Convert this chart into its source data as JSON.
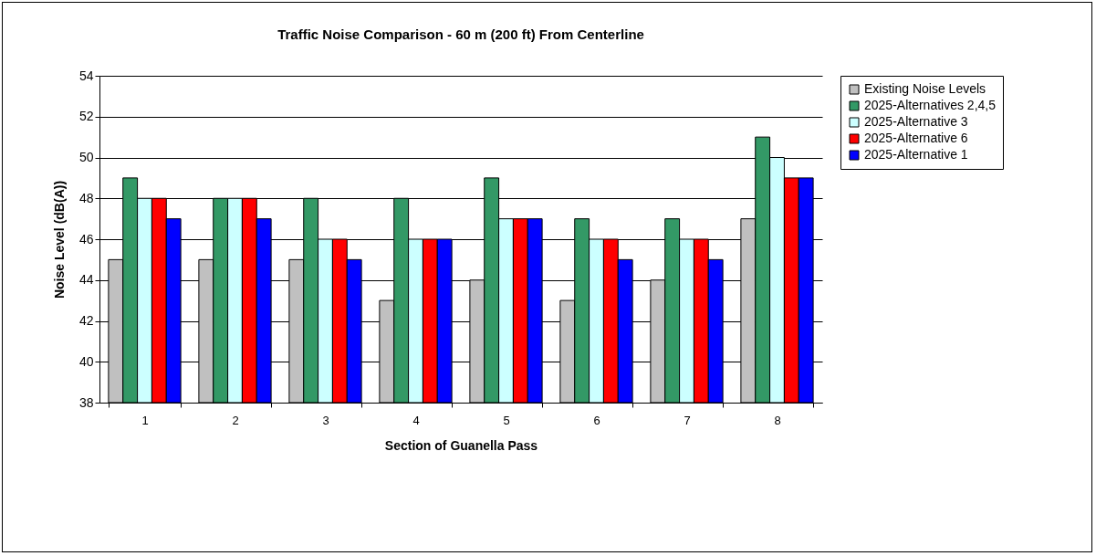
{
  "chart_data": {
    "type": "bar",
    "title": "Traffic Noise Comparison - 60 m (200 ft) From Centerline",
    "xlabel": "Section of Guanella Pass",
    "ylabel": "Noise Level (dB(A))",
    "categories": [
      "1",
      "2",
      "3",
      "4",
      "5",
      "6",
      "7",
      "8"
    ],
    "series": [
      {
        "name": "Existing Noise Levels",
        "color": "#c0c0c0",
        "values": [
          45,
          45,
          45,
          43,
          44,
          43,
          44,
          47
        ]
      },
      {
        "name": "2025-Alternatives 2,4,5",
        "color": "#339966",
        "values": [
          49,
          48,
          48,
          48,
          49,
          47,
          47,
          51
        ]
      },
      {
        "name": "2025-Alternative 3",
        "color": "#ccffff",
        "values": [
          48,
          48,
          46,
          46,
          47,
          46,
          46,
          50
        ]
      },
      {
        "name": "2025-Alternative 6",
        "color": "#ff0000",
        "values": [
          48,
          48,
          46,
          46,
          47,
          46,
          46,
          49
        ]
      },
      {
        "name": "2025-Alternative 1",
        "color": "#0000ff",
        "values": [
          47,
          47,
          45,
          46,
          47,
          45,
          45,
          49
        ]
      }
    ],
    "ylim": [
      38,
      54
    ],
    "yticks": [
      38,
      40,
      42,
      44,
      46,
      48,
      50,
      52,
      54
    ],
    "grid": "y",
    "legend": "right"
  }
}
